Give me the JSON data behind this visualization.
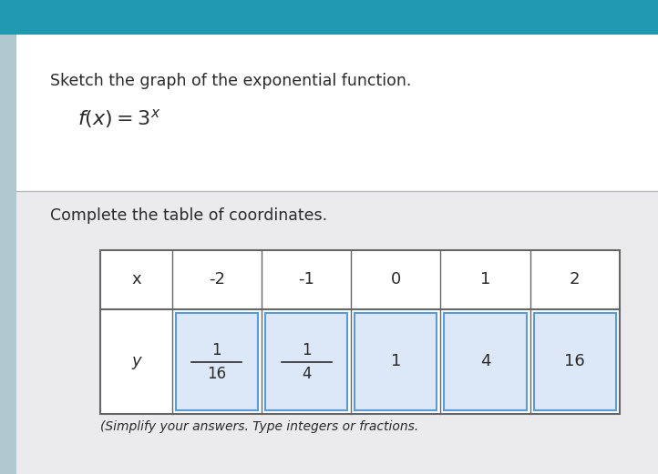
{
  "title_line1": "Sketch the graph of the exponential function.",
  "subtitle": "Complete the table of coordinates.",
  "footer": "(Simplify your answers. Type integers or fractions.",
  "x_values": [
    "x",
    "-2",
    "-1",
    "0",
    "1",
    "2"
  ],
  "y_label": "y",
  "y_values_display": [
    {
      "type": "fraction",
      "numerator": "1",
      "denominator": "16"
    },
    {
      "type": "fraction",
      "numerator": "1",
      "denominator": "4"
    },
    {
      "type": "integer",
      "value": "1"
    },
    {
      "type": "integer",
      "value": "4"
    },
    {
      "type": "integer",
      "value": "16"
    }
  ],
  "bg_color": "#c8dce0",
  "content_bg": "#f0f0f2",
  "white_bg": "#ffffff",
  "table_border_color": "#666666",
  "cell_highlight_color": "#dce8f7",
  "cell_highlight_border": "#5b9bd5",
  "teal_bar_color": "#2199b0",
  "text_color": "#2a2a2a",
  "title_fontsize": 12.5,
  "cell_fontsize": 12
}
